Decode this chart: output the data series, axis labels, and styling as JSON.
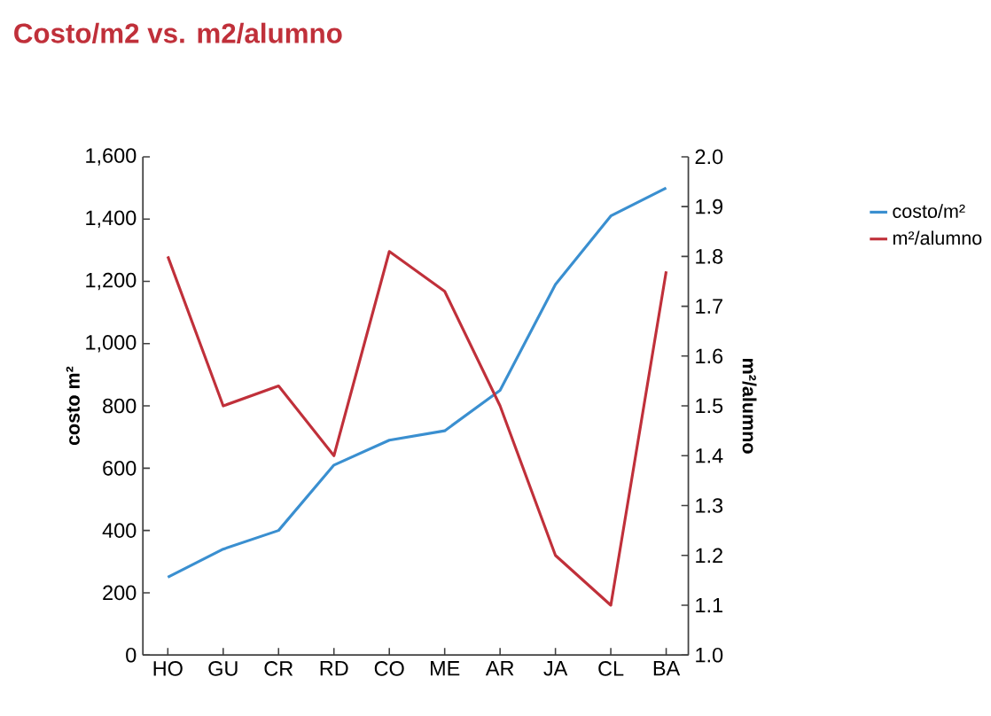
{
  "chart_data": {
    "type": "line",
    "title": "Costo/m2 vs. m2/alumno",
    "categories": [
      "HO",
      "GU",
      "CR",
      "RD",
      "CO",
      "ME",
      "AR",
      "JA",
      "CL",
      "BA"
    ],
    "series": [
      {
        "name": "costo/m²",
        "color": "#3a8fd0",
        "values": [
          250,
          340,
          400,
          610,
          690,
          720,
          850,
          1190,
          1410,
          1500
        ]
      },
      {
        "name": "m²/alumno",
        "color": "#c0303a",
        "axis": "y2",
        "values": [
          1.8,
          1.5,
          1.54,
          1.4,
          1.81,
          1.73,
          1.5,
          1.2,
          1.1,
          1.77
        ]
      }
    ],
    "ylabel": "costo m²",
    "y2label": "m²/alumno",
    "ylim": [
      0,
      1600
    ],
    "yticks": [
      0,
      200,
      400,
      600,
      800,
      {
        "value": 1000,
        "label": "1,000"
      },
      {
        "value": 1200,
        "label": "1,200"
      },
      {
        "value": 1400,
        "label": "1,400"
      },
      {
        "value": 1600,
        "label": "1,600"
      }
    ],
    "y2lim": [
      1,
      2
    ],
    "y2ticks": [
      {
        "value": 1,
        "label": "1.0"
      },
      1.1,
      1.2,
      1.3,
      1.4,
      1.5,
      1.6,
      1.7,
      1.8,
      1.9,
      {
        "value": 2,
        "label": "2.0"
      }
    ],
    "legend": "right",
    "grid": false,
    "marker": "none",
    "line_style": "solid"
  }
}
